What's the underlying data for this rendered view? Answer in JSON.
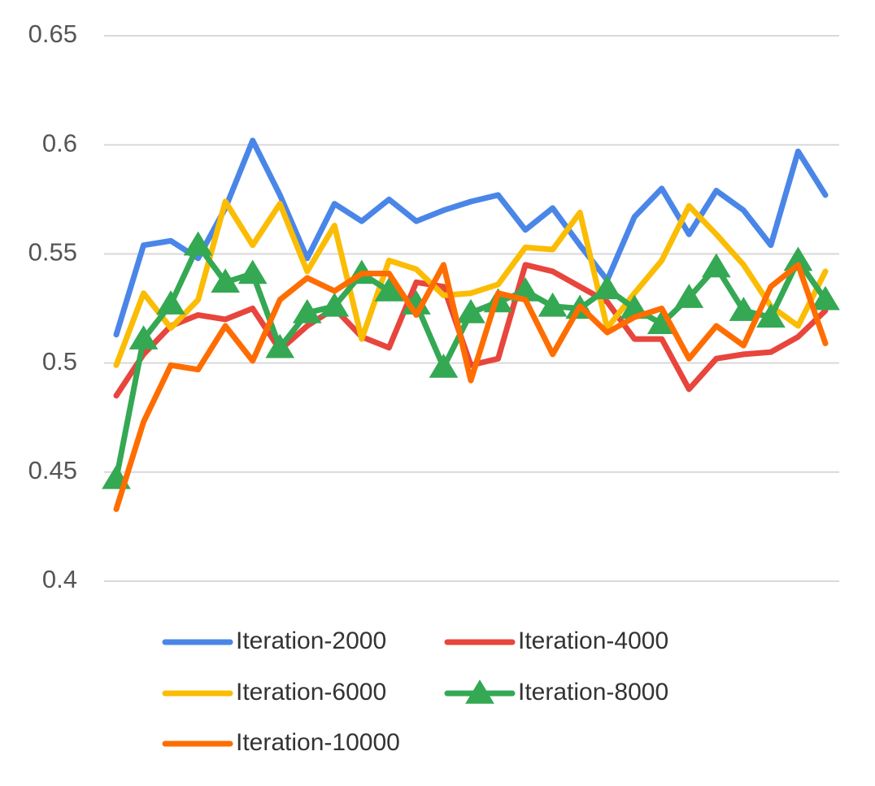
{
  "chart_data": {
    "type": "line",
    "ylim": [
      0.4,
      0.65
    ],
    "yticks": [
      0.4,
      0.45,
      0.5,
      0.55,
      0.6,
      0.65
    ],
    "grid": true,
    "legend": "bottom",
    "series": [
      {
        "name": "Iteration-2000",
        "color": "#4a86e8",
        "values": [
          0.513,
          0.554,
          0.556,
          0.548,
          0.571,
          0.602,
          0.577,
          0.548,
          0.573,
          0.565,
          0.575,
          0.565,
          0.57,
          0.574,
          0.577,
          0.561,
          0.571,
          0.554,
          0.538,
          0.567,
          0.58,
          0.559,
          0.579,
          0.57,
          0.554,
          0.597,
          0.577
        ]
      },
      {
        "name": "Iteration-4000",
        "color": "#e8453c",
        "values": [
          0.485,
          0.504,
          0.517,
          0.522,
          0.52,
          0.525,
          0.506,
          0.517,
          0.525,
          0.512,
          0.507,
          0.537,
          0.535,
          0.499,
          0.502,
          0.545,
          0.542,
          0.535,
          0.528,
          0.511,
          0.511,
          0.488,
          0.502,
          0.504,
          0.505,
          0.512,
          0.524
        ]
      },
      {
        "name": "Iteration-6000",
        "color": "#fbbc04",
        "values": [
          0.499,
          0.532,
          0.516,
          0.529,
          0.574,
          0.554,
          0.573,
          0.542,
          0.563,
          0.511,
          0.547,
          0.543,
          0.531,
          0.532,
          0.536,
          0.553,
          0.552,
          0.569,
          0.516,
          0.532,
          0.547,
          0.572,
          0.559,
          0.545,
          0.526,
          0.517,
          0.542
        ]
      },
      {
        "name": "Iteration-8000",
        "color": "#34a853",
        "marker": "triangle",
        "values": [
          0.447,
          0.511,
          0.527,
          0.554,
          0.537,
          0.541,
          0.507,
          0.523,
          0.526,
          0.541,
          0.533,
          0.527,
          0.498,
          0.523,
          0.528,
          0.533,
          0.526,
          0.525,
          0.534,
          0.525,
          0.518,
          0.53,
          0.544,
          0.524,
          0.521,
          0.547,
          0.529
        ]
      },
      {
        "name": "Iteration-10000",
        "color": "#ff6d01",
        "values": [
          0.433,
          0.473,
          0.499,
          0.497,
          0.517,
          0.501,
          0.529,
          0.539,
          0.533,
          0.541,
          0.541,
          0.522,
          0.545,
          0.492,
          0.532,
          0.529,
          0.504,
          0.526,
          0.514,
          0.521,
          0.525,
          0.502,
          0.517,
          0.508,
          0.535,
          0.545,
          0.509
        ]
      }
    ]
  }
}
